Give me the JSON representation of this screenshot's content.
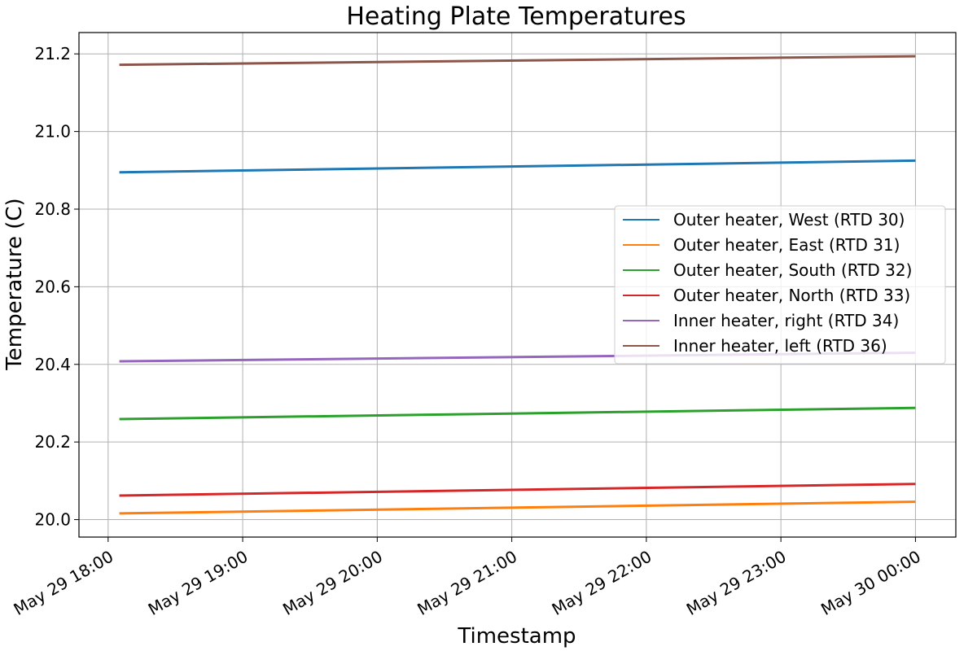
{
  "chart_data": {
    "type": "line",
    "title": "Heating Plate Temperatures",
    "xlabel": "Timestamp",
    "ylabel": "Temperature (C)",
    "x_ticks": [
      "May 29 18:00",
      "May 29 19:00",
      "May 29 20:00",
      "May 29 21:00",
      "May 29 22:00",
      "May 29 23:00",
      "May 30 00:00"
    ],
    "y_ticks": [
      "20.0",
      "20.2",
      "20.4",
      "20.6",
      "20.8",
      "21.0",
      "21.2"
    ],
    "xlim": [
      "2024-05-29T17:47",
      "2024-05-30T00:18"
    ],
    "ylim": [
      19.955,
      21.255
    ],
    "x": [
      "2024-05-29T18:05",
      "2024-05-30T00:00"
    ],
    "grid": true,
    "legend_position": "center-right",
    "series": [
      {
        "name": "Outer heater, West (RTD 30)",
        "color": "#1f77b4",
        "values": [
          20.895,
          20.925
        ]
      },
      {
        "name": "Outer heater, East (RTD 31)",
        "color": "#ff7f0e",
        "values": [
          20.016,
          20.046
        ]
      },
      {
        "name": "Outer heater, South (RTD 32)",
        "color": "#2ca02c",
        "values": [
          20.259,
          20.288
        ]
      },
      {
        "name": "Outer heater, North (RTD 33)",
        "color": "#d62728",
        "values": [
          20.062,
          20.092
        ]
      },
      {
        "name": "Inner heater, right (RTD 34)",
        "color": "#9467bd",
        "values": [
          20.408,
          20.43
        ]
      },
      {
        "name": "Inner heater, left (RTD 36)",
        "color": "#8c564b",
        "values": [
          21.172,
          21.194
        ]
      }
    ]
  }
}
